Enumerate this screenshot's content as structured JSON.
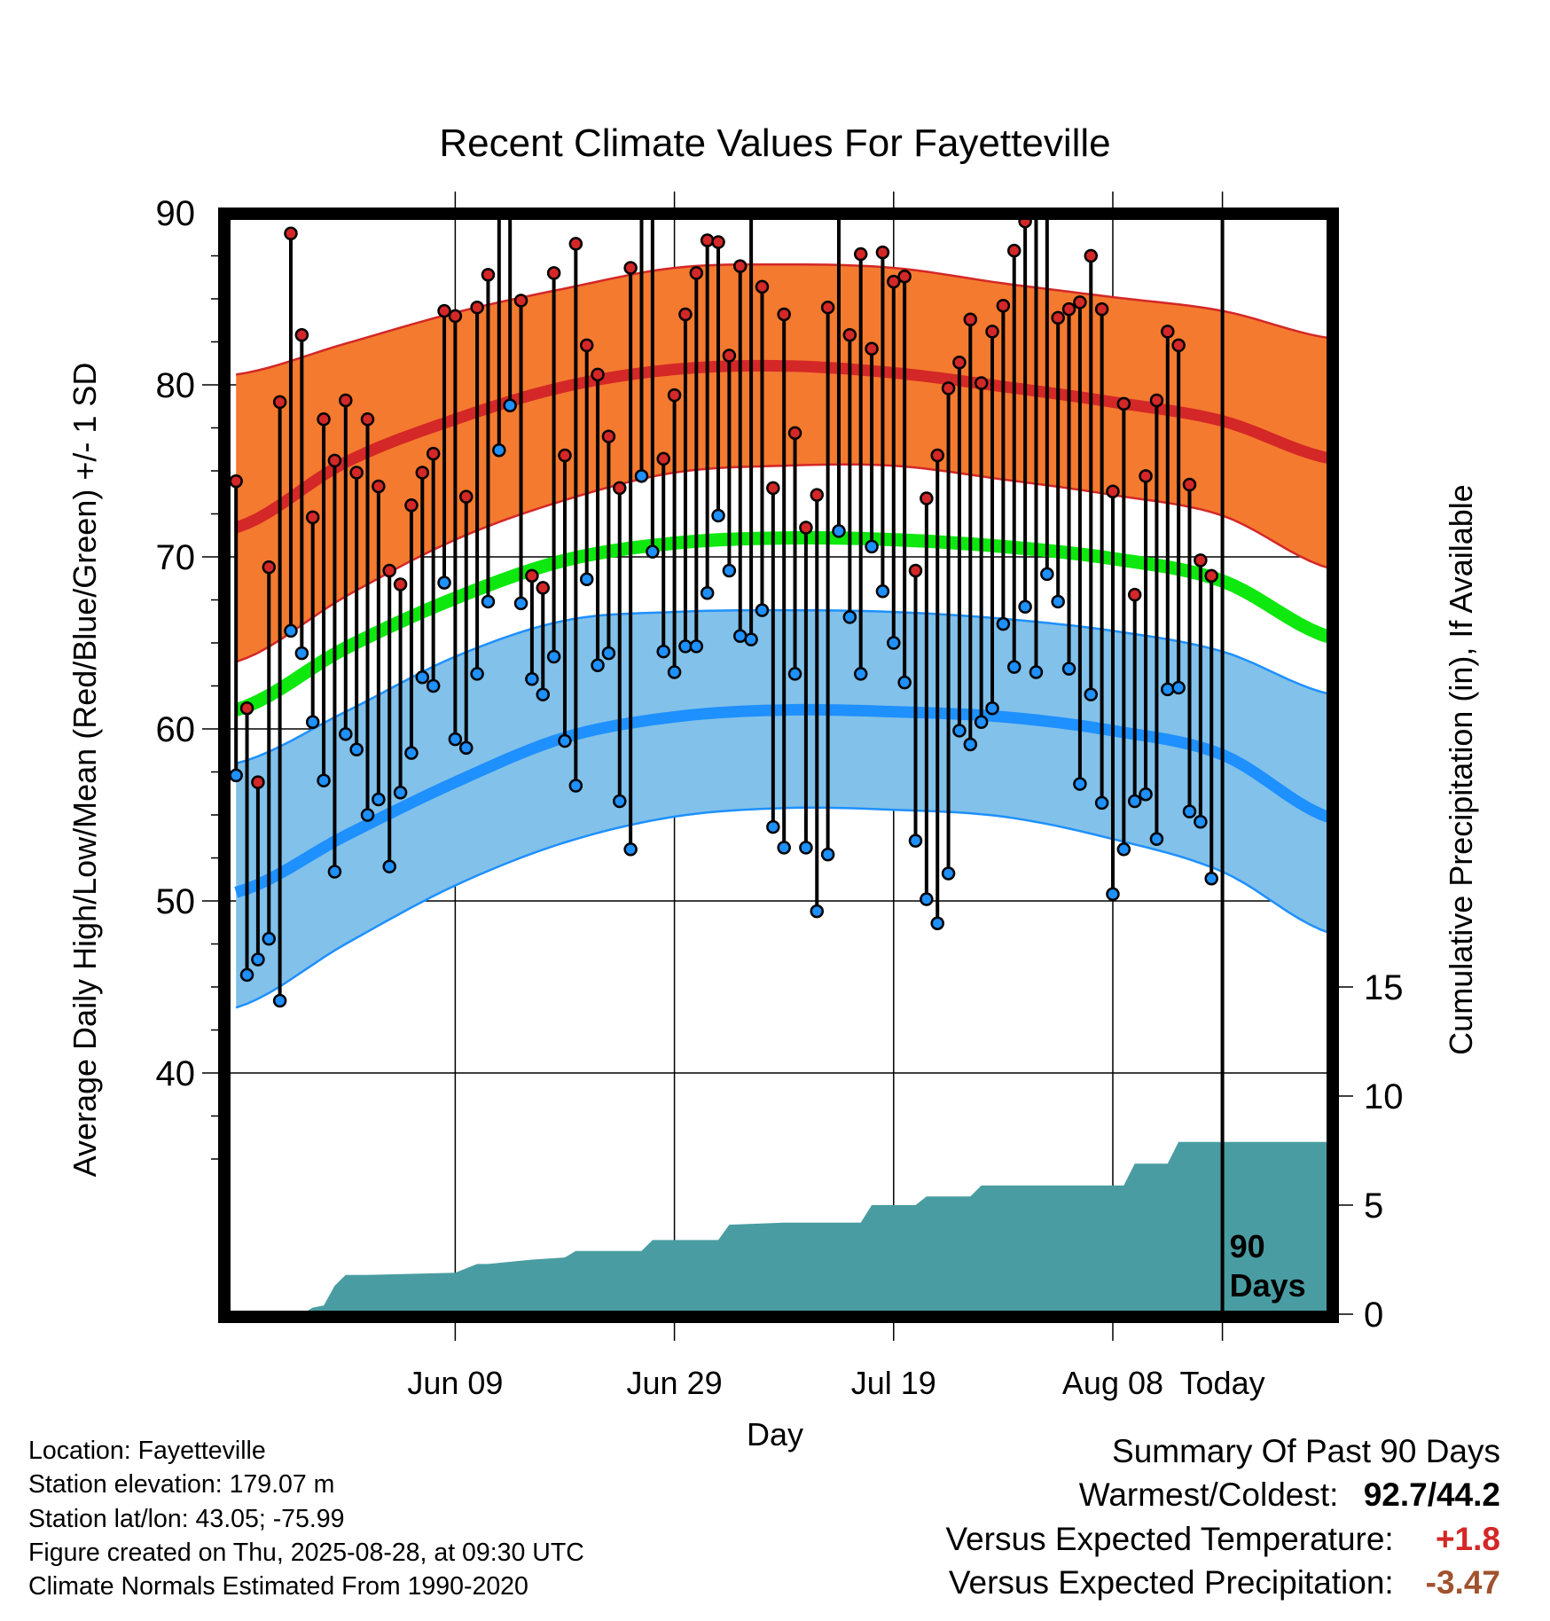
{
  "chart_data": {
    "type": "line",
    "title": "Recent Climate Values For Fayetteville",
    "xlabel": "Day",
    "ylabel_left": "Average Daily High/Low/Mean (Red/Blue/Green) +/- 1 SD",
    "ylabel_right": "Cumulative Precipitation (in), If Available",
    "y_ticks": [
      40,
      50,
      60,
      70,
      80,
      90
    ],
    "precip_ticks": [
      0,
      5,
      10,
      15
    ],
    "x_tick_labels": [
      "Jun 09",
      "Jun 29",
      "Jul 19",
      "Aug 08",
      "Today"
    ],
    "today_label": [
      "90",
      "Days"
    ],
    "daily_high": [
      74.4,
      61.2,
      56.9,
      69.4,
      79.0,
      88.8,
      82.9,
      72.3,
      78.0,
      75.6,
      79.1,
      74.9,
      78.0,
      74.1,
      69.2,
      68.4,
      73.0,
      74.9,
      76.0,
      84.3,
      84.0,
      73.5,
      84.5,
      86.4,
      92.0,
      92.4,
      84.9,
      68.9,
      68.2,
      86.5,
      75.9,
      88.2,
      82.3,
      80.6,
      77.0,
      74.0,
      86.8,
      90.2,
      91.8,
      75.7,
      79.4,
      84.1,
      86.5,
      88.4,
      88.3,
      81.7,
      86.9,
      90.0,
      85.7,
      74.0,
      84.1,
      77.2,
      71.7,
      73.6,
      84.5,
      90.6,
      82.9,
      87.6,
      82.1,
      87.7,
      86.0,
      86.3,
      69.2,
      73.4,
      75.9,
      79.8,
      81.3,
      83.8,
      80.1,
      83.1,
      84.6,
      87.8,
      89.5,
      90.6,
      92.7,
      83.9,
      84.4,
      84.8,
      87.5,
      84.4,
      73.8,
      78.9,
      67.8,
      74.7,
      79.1,
      83.1,
      82.3,
      74.2,
      69.8,
      68.9
    ],
    "daily_low": [
      57.3,
      45.7,
      46.6,
      47.8,
      44.2,
      65.7,
      64.4,
      60.4,
      57.0,
      51.7,
      59.7,
      58.8,
      55.0,
      55.9,
      52.0,
      56.3,
      58.6,
      63.0,
      62.5,
      68.5,
      59.4,
      58.9,
      63.2,
      67.4,
      76.2,
      78.8,
      67.3,
      62.9,
      62.0,
      64.2,
      59.3,
      56.7,
      68.7,
      63.7,
      64.4,
      55.8,
      53.0,
      74.7,
      70.3,
      64.5,
      63.3,
      64.8,
      64.8,
      67.9,
      72.4,
      69.2,
      65.4,
      65.2,
      66.9,
      54.3,
      53.1,
      63.2,
      53.1,
      49.4,
      52.7,
      71.5,
      66.5,
      63.2,
      70.6,
      68.0,
      65.0,
      62.7,
      53.5,
      50.1,
      48.7,
      51.6,
      59.9,
      59.1,
      60.4,
      61.2,
      66.1,
      63.6,
      67.1,
      63.3,
      69.0,
      67.4,
      63.5,
      56.8,
      62.0,
      55.7,
      50.4,
      53.0,
      55.8,
      56.2,
      53.6,
      62.3,
      62.4,
      55.2,
      54.6,
      51.3
    ],
    "normal_high": {
      "day": [
        0,
        10,
        20,
        30,
        40,
        50,
        60,
        70,
        80,
        90,
        100
      ],
      "mean": [
        71.7,
        75.5,
        78.0,
        79.9,
        80.9,
        81.1,
        80.7,
        79.9,
        79.0,
        77.9,
        75.7
      ],
      "minus_sd": [
        63.9,
        67.7,
        71.0,
        73.3,
        74.9,
        75.3,
        75.3,
        74.5,
        73.6,
        72.4,
        69.3
      ],
      "plus_sd": [
        80.6,
        82.4,
        84.2,
        85.6,
        86.8,
        87.0,
        86.8,
        85.9,
        85.1,
        84.3,
        82.7
      ]
    },
    "normal_low": {
      "day": [
        0,
        10,
        20,
        30,
        40,
        50,
        60,
        70,
        80,
        90,
        100
      ],
      "mean": [
        50.5,
        53.8,
        56.9,
        59.5,
        60.7,
        61.1,
        61.0,
        60.7,
        59.9,
        58.5,
        54.8
      ],
      "minus_sd": [
        43.8,
        47.5,
        50.9,
        53.4,
        54.9,
        55.4,
        55.3,
        54.9,
        53.6,
        51.7,
        48.1
      ],
      "plus_sd": [
        58.0,
        61.0,
        64.2,
        66.3,
        66.8,
        66.9,
        66.8,
        66.4,
        65.7,
        64.5,
        62.0
      ]
    },
    "normal_mean": {
      "day": [
        0,
        10,
        20,
        30,
        40,
        50,
        60,
        70,
        80,
        90,
        100
      ],
      "value": [
        61.1,
        64.7,
        67.6,
        69.8,
        70.8,
        71.1,
        71.0,
        70.6,
        69.9,
        68.6,
        65.3
      ]
    },
    "cumulative_precip": {
      "day": [
        0,
        6,
        7,
        8,
        9,
        10,
        11,
        12,
        20,
        22,
        23,
        27,
        30,
        31,
        37,
        38,
        44,
        45,
        50,
        51,
        57,
        58,
        62,
        63,
        67,
        68,
        81,
        82,
        85,
        86,
        100
      ],
      "value": [
        0,
        0,
        0.3,
        0.4,
        1.3,
        1.8,
        1.8,
        1.8,
        1.9,
        2.3,
        2.3,
        2.5,
        2.6,
        2.9,
        2.9,
        3.4,
        3.4,
        4.1,
        4.2,
        4.2,
        4.2,
        5.0,
        5.0,
        5.4,
        5.4,
        5.9,
        5.9,
        6.9,
        6.9,
        7.9,
        7.9
      ]
    },
    "colors": {
      "high_band": "#f47a2f",
      "high_line": "#d42727",
      "low_band": "#82c1e9",
      "low_line": "#1e90ff",
      "mean_line": "#0ee80e",
      "precip": "#499da2",
      "high_dot": "#d42727",
      "low_dot": "#1e90ff"
    }
  },
  "footer": {
    "location": "Location: Fayetteville",
    "elevation": "Station elevation: 179.07 m",
    "latlon": "Station lat/lon: 43.05; -75.99",
    "created": "Figure created on Thu, 2025-08-28, at 09:30 UTC",
    "normals": "Climate Normals Estimated From 1990-2020"
  },
  "summary": {
    "title": "Summary Of Past 90 Days",
    "warm_cold_label": "Warmest/Coldest:",
    "warm_cold_value": "92.7/44.2",
    "temp_label": "Versus Expected Temperature:",
    "temp_value": "+1.8",
    "temp_color": "#d42727",
    "precip_label": "Versus Expected Precipitation:",
    "precip_value": "-3.47",
    "precip_color": "#a0522d"
  }
}
